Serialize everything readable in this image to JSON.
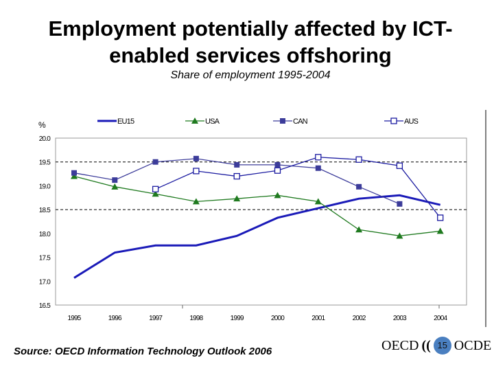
{
  "title": "Employment potentially affected by ICT-enabled services offshoring",
  "title_lines": [
    "Employment potentially affected by ICT-",
    "enabled services offshoring"
  ],
  "subtitle": "Share of employment 1995-2004",
  "source": "Source: OECD Information Technology Outlook 2006",
  "logo": {
    "left": "OECD",
    "right": "OCDE",
    "page": "15"
  },
  "chart_data": {
    "type": "line",
    "title": "Employment potentially affected by ICT-enabled services offshoring",
    "subtitle": "Share of employment 1995-2004",
    "ylabel": "%",
    "ylim": [
      16.5,
      20.0
    ],
    "yticks": [
      "20.0",
      "19.5",
      "19.0",
      "18.5",
      "18.0",
      "17.5",
      "17.0",
      "16.5"
    ],
    "reference_lines": [
      19.5,
      18.5
    ],
    "legend": "top",
    "x": [
      "1995",
      "1996",
      "1997",
      "1998",
      "1999",
      "2000",
      "2001",
      "2002",
      "2003",
      "2004"
    ],
    "series": [
      {
        "name": "EU15",
        "color": "#1a1ab8",
        "marker": "none",
        "values": [
          17.07,
          17.6,
          17.75,
          17.75,
          17.95,
          18.33,
          18.53,
          18.73,
          18.8,
          18.6
        ]
      },
      {
        "name": "USA",
        "color": "#1f7a1f",
        "marker": "triangle",
        "values": [
          19.2,
          18.98,
          18.83,
          18.67,
          18.73,
          18.8,
          18.67,
          18.08,
          17.95,
          18.05
        ]
      },
      {
        "name": "CAN",
        "color": "#3c3c9a",
        "marker": "filled-square",
        "values": [
          19.27,
          19.12,
          19.5,
          19.57,
          19.44,
          19.44,
          19.37,
          18.98,
          18.62,
          null
        ]
      },
      {
        "name": "AUS",
        "color": "#1a1aa0",
        "marker": "open-square",
        "values": [
          null,
          null,
          18.93,
          19.31,
          19.2,
          19.32,
          19.6,
          19.55,
          19.42,
          18.33
        ]
      }
    ]
  }
}
